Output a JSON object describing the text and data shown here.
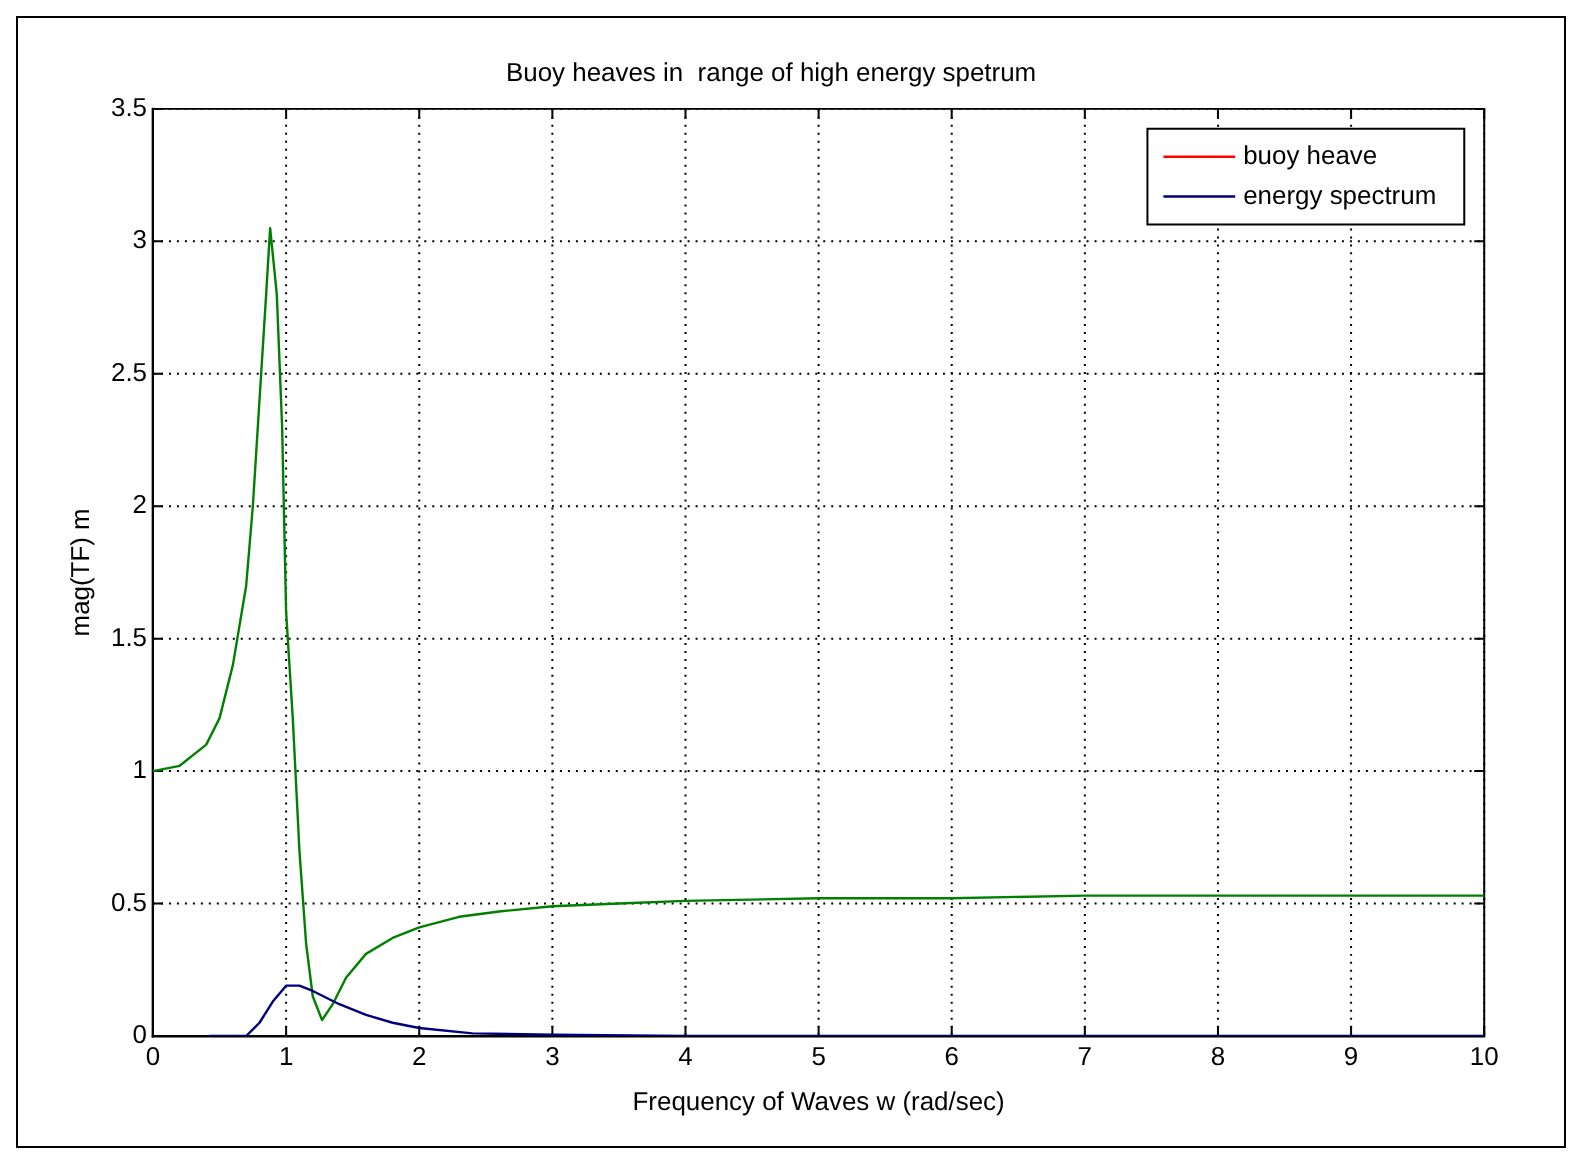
{
  "chart_data": {
    "type": "line",
    "title": "Buoy heaves in  range of high energy spetrum",
    "xlabel": "Frequency of Waves w (rad/sec)",
    "ylabel": "mag(TF) m",
    "xlim": [
      0,
      10
    ],
    "ylim": [
      0,
      3.5
    ],
    "xticks": [
      0,
      1,
      2,
      3,
      4,
      5,
      6,
      7,
      8,
      9,
      10
    ],
    "yticks": [
      0,
      0.5,
      1,
      1.5,
      2,
      2.5,
      3,
      3.5
    ],
    "grid": true,
    "legend": "top right",
    "marker": "none",
    "line_style": "solid",
    "series": [
      {
        "name": "buoy heave",
        "color": "#ff0000"
      },
      {
        "name": "energy spectrum",
        "color": "#00007f",
        "x": [
          0.42,
          0.7,
          0.8,
          0.9,
          1.0,
          1.1,
          1.2,
          1.4,
          1.6,
          1.8,
          2.0,
          2.4,
          3,
          4,
          5,
          6,
          7,
          8,
          9,
          10
        ],
        "values": [
          0,
          0,
          0.05,
          0.13,
          0.19,
          0.19,
          0.17,
          0.12,
          0.08,
          0.05,
          0.03,
          0.01,
          0.005,
          0,
          0,
          0,
          0,
          0,
          0,
          0
        ]
      },
      {
        "color": "#008000",
        "x": [
          0,
          0.2,
          0.4,
          0.5,
          0.6,
          0.7,
          0.75,
          0.8,
          0.85,
          0.88,
          0.93,
          0.97,
          1.0,
          1.05,
          1.1,
          1.15,
          1.2,
          1.27,
          1.35,
          1.45,
          1.6,
          1.8,
          2.0,
          2.3,
          2.6,
          3,
          3.5,
          4,
          5,
          6,
          7,
          8,
          9,
          10
        ],
        "values": [
          1.0,
          1.02,
          1.1,
          1.2,
          1.4,
          1.7,
          2.0,
          2.4,
          2.8,
          3.05,
          2.8,
          2.3,
          1.6,
          1.2,
          0.7,
          0.35,
          0.15,
          0.06,
          0.12,
          0.22,
          0.31,
          0.37,
          0.41,
          0.45,
          0.47,
          0.49,
          0.5,
          0.51,
          0.52,
          0.52,
          0.53,
          0.53,
          0.53,
          0.53
        ]
      }
    ]
  }
}
